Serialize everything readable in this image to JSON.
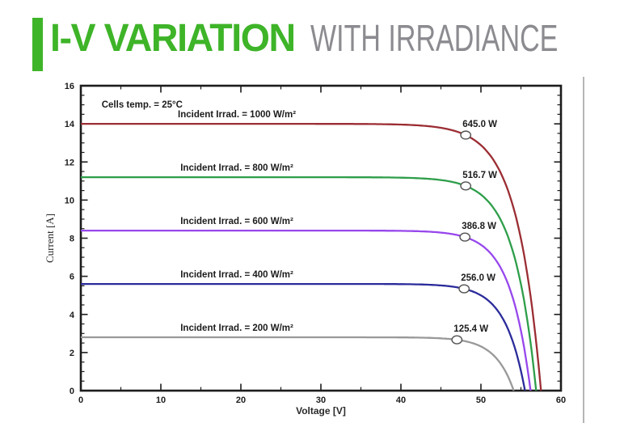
{
  "header": {
    "title_primary": "I-V VARIATION",
    "title_secondary": "WITH IRRADIANCE",
    "accent_color": "#3eb428",
    "secondary_color": "#8b8b90"
  },
  "chart_data": {
    "type": "line",
    "title": "",
    "xlabel": "Voltage [V]",
    "ylabel": "Current [A]",
    "xlim": [
      0,
      60
    ],
    "ylim": [
      0,
      16
    ],
    "x_major_ticks": [
      0,
      10,
      20,
      30,
      40,
      50,
      60
    ],
    "x_minor_step": 5,
    "y_major_ticks": [
      0,
      2,
      4,
      6,
      8,
      10,
      12,
      14,
      16
    ],
    "y_minor_step": 0.5,
    "grid": false,
    "legend_position": "inline-labels",
    "frame_color": "#1c1c1c",
    "annotation": "Cells temp. = 25°C",
    "annotation_pos": {
      "v": 2.6,
      "i": 14.85
    },
    "series_label_center_v": 19.5,
    "series": [
      {
        "label": "Incident Irrad. = 1000 W/m²",
        "color": "#9b2d33",
        "isc_a": 14.0,
        "voc_v": 57.5,
        "vmp_v": 48.1,
        "pmp_w": 645.0,
        "pmp_label": "645.0 W"
      },
      {
        "label": "Incident Irrad. = 800 W/m²",
        "color": "#2e9e4a",
        "isc_a": 11.2,
        "voc_v": 56.9,
        "vmp_v": 48.1,
        "pmp_w": 516.7,
        "pmp_label": "516.7 W"
      },
      {
        "label": "Incident Irrad. = 600 W/m²",
        "color": "#9747ec",
        "isc_a": 8.4,
        "voc_v": 56.2,
        "vmp_v": 48.0,
        "pmp_w": 386.8,
        "pmp_label": "386.8 W"
      },
      {
        "label": "Incident Irrad. = 400 W/m²",
        "color": "#2b2b9b",
        "isc_a": 5.6,
        "voc_v": 55.5,
        "vmp_v": 47.9,
        "pmp_w": 256.0,
        "pmp_label": "256.0 W"
      },
      {
        "label": "Incident Irrad. = 200 W/m²",
        "color": "#999999",
        "isc_a": 2.8,
        "voc_v": 54.1,
        "vmp_v": 47.0,
        "pmp_w": 125.4,
        "pmp_label": "125.4 W"
      }
    ]
  }
}
